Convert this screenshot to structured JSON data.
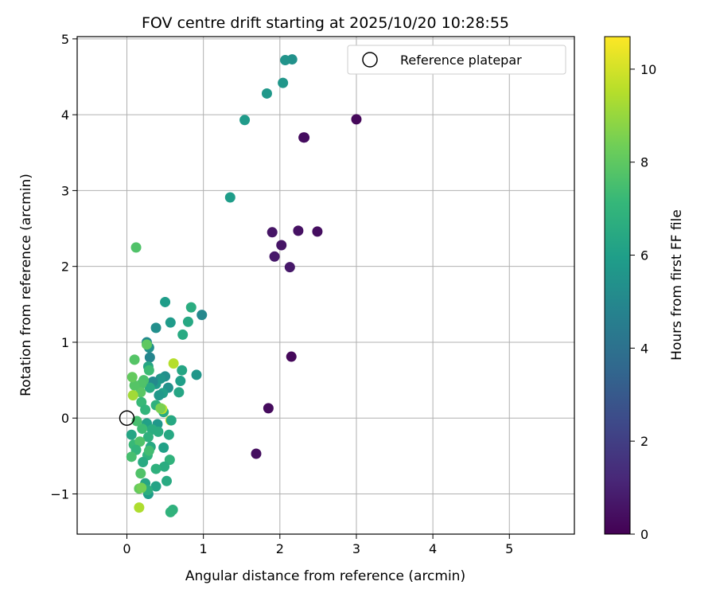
{
  "chart_data": {
    "type": "scatter",
    "title": "FOV centre drift starting at 2025/10/20 10:28:55",
    "xlabel": "Angular distance from reference (arcmin)",
    "ylabel": "Rotation from reference (arcmin)",
    "xlim": [
      -0.65,
      5.85
    ],
    "ylim": [
      -1.53,
      5.03
    ],
    "xticks": [
      0,
      1,
      2,
      3,
      4,
      5
    ],
    "yticks": [
      -1,
      0,
      1,
      2,
      3,
      4,
      5
    ],
    "grid": true,
    "legend": {
      "position": "top-right",
      "entries": [
        "Reference platepar"
      ]
    },
    "reference_point": {
      "x": 0,
      "y": 0,
      "label": "Reference platepar"
    },
    "colorbar": {
      "label": "Hours from first FF file",
      "range": [
        0,
        10.7
      ],
      "ticks": [
        0,
        2,
        4,
        6,
        8,
        10
      ],
      "colormap": "viridis",
      "stops": [
        "#440154",
        "#482878",
        "#3e4989",
        "#31688e",
        "#26828e",
        "#1f9e89",
        "#35b779",
        "#6ece58",
        "#b5de2b",
        "#fde725"
      ]
    },
    "series": [
      {
        "points": [
          [
            3.0,
            3.94,
            0.2
          ],
          [
            2.31,
            3.7,
            0.3
          ],
          [
            2.32,
            3.7,
            0.35
          ],
          [
            2.49,
            2.46,
            0.4
          ],
          [
            2.24,
            2.47,
            0.5
          ],
          [
            1.9,
            2.45,
            0.6
          ],
          [
            2.02,
            2.28,
            0.6
          ],
          [
            1.93,
            2.13,
            0.7
          ],
          [
            2.13,
            1.99,
            0.7
          ],
          [
            2.15,
            0.81,
            0.2
          ],
          [
            1.85,
            0.13,
            0.3
          ],
          [
            1.69,
            -0.47,
            0.4
          ],
          [
            2.16,
            4.73,
            5.4
          ],
          [
            2.07,
            4.72,
            5.5
          ],
          [
            2.04,
            4.42,
            5.6
          ],
          [
            1.83,
            4.28,
            5.7
          ],
          [
            1.54,
            3.93,
            5.8
          ],
          [
            1.35,
            2.91,
            5.9
          ],
          [
            0.98,
            1.36,
            5.0
          ],
          [
            0.84,
            1.46,
            6.6
          ],
          [
            0.8,
            1.27,
            6.4
          ],
          [
            0.73,
            1.1,
            6.5
          ],
          [
            0.57,
            1.26,
            5.8
          ],
          [
            0.5,
            1.53,
            5.9
          ],
          [
            0.38,
            1.19,
            5.3
          ],
          [
            0.26,
            1.0,
            5.1
          ],
          [
            0.29,
            0.93,
            5.4
          ],
          [
            0.3,
            0.8,
            4.9
          ],
          [
            0.28,
            0.68,
            6.3
          ],
          [
            0.91,
            0.57,
            5.6
          ],
          [
            0.72,
            0.63,
            6.3
          ],
          [
            0.7,
            0.49,
            6.0
          ],
          [
            0.68,
            0.34,
            6.3
          ],
          [
            0.5,
            0.55,
            5.3
          ],
          [
            0.44,
            0.52,
            5.6
          ],
          [
            0.38,
            0.45,
            5.8
          ],
          [
            0.34,
            0.48,
            5.1
          ],
          [
            0.3,
            0.4,
            6.5
          ],
          [
            0.54,
            0.4,
            5.4
          ],
          [
            0.47,
            0.33,
            6.0
          ],
          [
            0.42,
            0.3,
            5.7
          ],
          [
            0.22,
            0.5,
            7.6
          ],
          [
            0.19,
            0.45,
            7.7
          ],
          [
            0.18,
            0.34,
            7.9
          ],
          [
            0.1,
            0.43,
            7.8
          ],
          [
            0.07,
            0.54,
            8.1
          ],
          [
            0.1,
            0.77,
            7.8
          ],
          [
            0.26,
            0.97,
            8.0
          ],
          [
            0.29,
            0.63,
            7.3
          ],
          [
            0.19,
            0.21,
            7.2
          ],
          [
            0.24,
            0.11,
            7.0
          ],
          [
            0.38,
            0.17,
            6.8
          ],
          [
            0.48,
            0.08,
            6.5
          ],
          [
            0.12,
            2.25,
            7.7
          ],
          [
            0.61,
            0.72,
            9.5
          ],
          [
            0.08,
            0.3,
            9.2
          ],
          [
            0.46,
            0.12,
            9.6
          ],
          [
            0.44,
            0.13,
            8.5
          ],
          [
            0.57,
            -0.03,
            10.2
          ],
          [
            0.58,
            -0.03,
            6.4
          ],
          [
            0.4,
            -0.08,
            5.7
          ],
          [
            0.26,
            -0.07,
            6.1
          ],
          [
            0.33,
            -0.15,
            6.6
          ],
          [
            0.28,
            -0.25,
            6.8
          ],
          [
            0.06,
            -0.22,
            6.3
          ],
          [
            0.09,
            -0.35,
            7.2
          ],
          [
            0.17,
            -0.31,
            7.7
          ],
          [
            0.2,
            -0.14,
            7.3
          ],
          [
            0.13,
            -0.04,
            7.5
          ],
          [
            0.55,
            -0.22,
            6.4
          ],
          [
            0.41,
            -0.18,
            6.6
          ],
          [
            0.31,
            -0.38,
            6.4
          ],
          [
            0.48,
            -0.39,
            6.1
          ],
          [
            0.27,
            -0.49,
            6.9
          ],
          [
            0.29,
            -0.43,
            7.4
          ],
          [
            0.12,
            -0.42,
            7.0
          ],
          [
            0.06,
            -0.51,
            7.5
          ],
          [
            0.56,
            -0.55,
            6.9
          ],
          [
            0.49,
            -0.64,
            6.6
          ],
          [
            0.38,
            -0.67,
            6.8
          ],
          [
            0.21,
            -0.58,
            6.5
          ],
          [
            0.18,
            -0.73,
            7.7
          ],
          [
            0.24,
            -0.86,
            6.3
          ],
          [
            0.38,
            -0.9,
            6.2
          ],
          [
            0.52,
            -0.83,
            6.5
          ],
          [
            0.28,
            -1.0,
            5.9
          ],
          [
            0.27,
            -0.95,
            6.7
          ],
          [
            0.16,
            -0.93,
            8.1
          ],
          [
            0.19,
            -0.92,
            8.4
          ],
          [
            0.16,
            -1.18,
            9.4
          ],
          [
            0.6,
            -1.21,
            6.8
          ],
          [
            0.57,
            -1.24,
            6.9
          ]
        ]
      }
    ]
  }
}
